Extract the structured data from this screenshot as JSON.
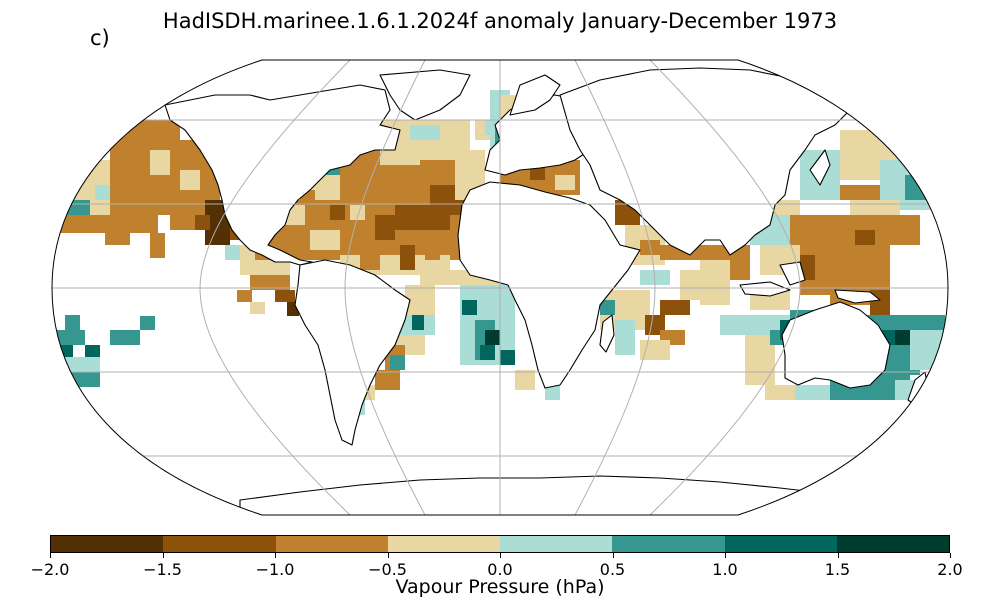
{
  "figure": {
    "panel_label": "c)",
    "title": "HadISDH.marinee.1.6.1.2024f anomaly January-December 1973"
  },
  "colorbar": {
    "label": "Vapour Pressure (hPa)",
    "ticks": [
      "−2.0",
      "−1.5",
      "−1.0",
      "−0.5",
      "0.0",
      "0.5",
      "1.0",
      "1.5",
      "2.0"
    ],
    "colors": [
      "#543005",
      "#8c510a",
      "#bf812d",
      "#e9d7a3",
      "#a9ddd6",
      "#35978f",
      "#01665e",
      "#003c30"
    ]
  },
  "map": {
    "projection": "Robinson",
    "grid": "30-degree graticule",
    "coastlines": true,
    "land_color": "#ffffff",
    "ocean_missing_color": "#ffffff"
  }
}
